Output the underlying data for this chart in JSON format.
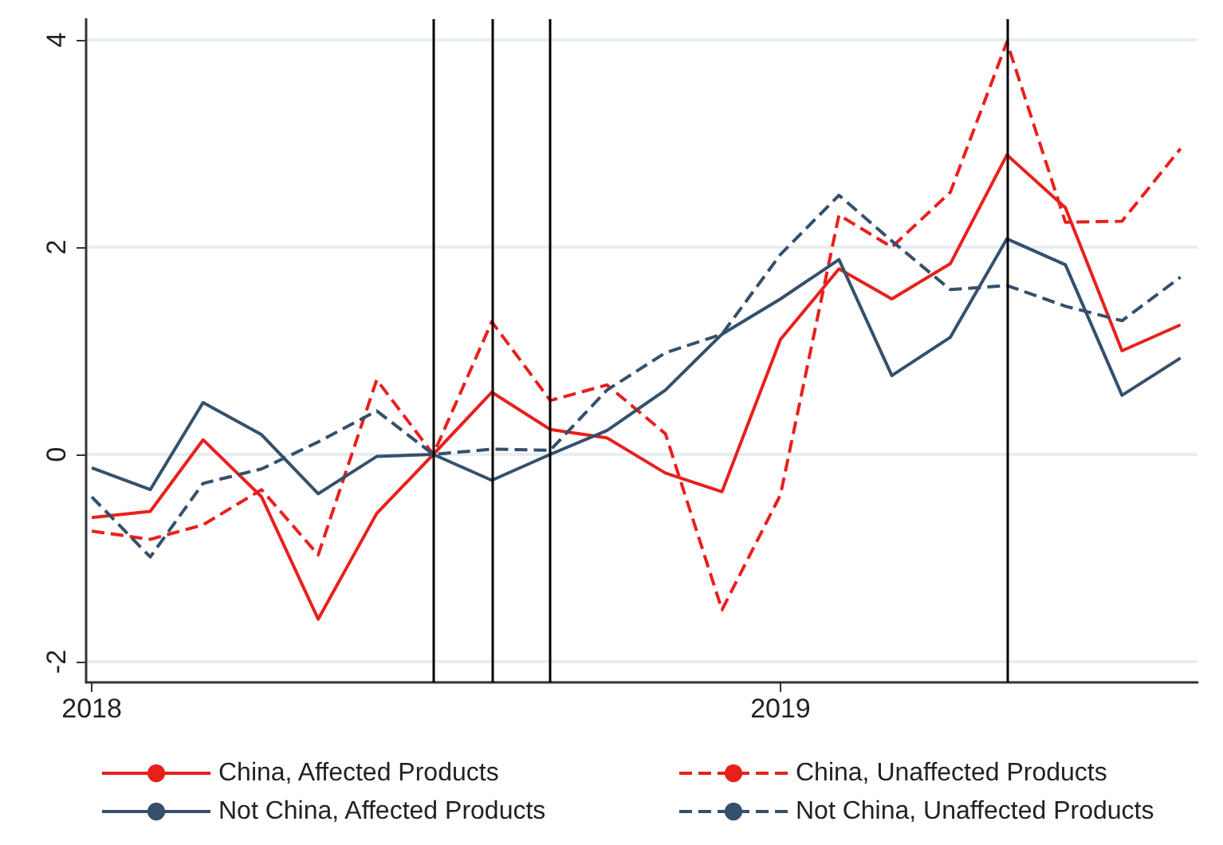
{
  "chart_data": {
    "type": "line",
    "x": [
      "2018-01",
      "2018-02",
      "2018-03",
      "2018-04",
      "2018-05",
      "2018-06",
      "2018-07",
      "2018-08",
      "2018-09",
      "2018-10",
      "2018-11",
      "2018-12",
      "2019-01",
      "2019-02",
      "2019-03",
      "2019-04",
      "2019-05",
      "2019-06",
      "2019-07",
      "2019-08"
    ],
    "series": [
      {
        "name": "China, Affected Products",
        "color": "#e8201c",
        "line_style": "solid",
        "values": [
          -0.61,
          -0.55,
          0.14,
          -0.41,
          -1.59,
          -0.57,
          0,
          0.6,
          0.24,
          0.16,
          -0.18,
          -0.36,
          1.11,
          1.79,
          1.5,
          1.84,
          2.89,
          2.38,
          1.0,
          1.25
        ]
      },
      {
        "name": "China, Unaffected Products",
        "color": "#e8201c",
        "line_style": "dashed",
        "values": [
          -0.74,
          -0.82,
          -0.68,
          -0.34,
          -0.97,
          0.72,
          0,
          1.28,
          0.52,
          0.67,
          0.2,
          -1.5,
          -0.39,
          2.31,
          2.0,
          2.53,
          3.98,
          2.24,
          2.25,
          2.95
        ]
      },
      {
        "name": "Not China, Affected Products",
        "color": "#35506b",
        "line_style": "solid",
        "values": [
          -0.13,
          -0.34,
          0.5,
          0.19,
          -0.38,
          -0.02,
          0,
          -0.25,
          0,
          0.23,
          0.62,
          1.16,
          1.5,
          1.88,
          0.76,
          1.13,
          2.08,
          1.83,
          0.57,
          0.93
        ]
      },
      {
        "name": "Not China, Unaffected Products",
        "color": "#35506b",
        "line_style": "dashed",
        "values": [
          -0.41,
          -0.99,
          -0.28,
          -0.14,
          0.12,
          0.42,
          0,
          0.05,
          0.04,
          0.62,
          0.98,
          1.16,
          1.93,
          2.5,
          2.06,
          1.59,
          1.63,
          1.43,
          1.29,
          1.71
        ]
      }
    ],
    "xlim": [
      "2017-12-29",
      "2019-08-10"
    ],
    "xticks": [
      {
        "value": "2018-01",
        "label": "2018"
      },
      {
        "value": "2019-01",
        "label": "2019"
      }
    ],
    "ylim": [
      -2.2,
      4.2
    ],
    "yticks": [
      -2,
      0,
      2,
      4
    ],
    "grid": "y",
    "legend": "bottom",
    "marker": "none",
    "ref_lines": [
      {
        "axis": "x",
        "value": "2018-07",
        "color": "#000000"
      },
      {
        "axis": "x",
        "value": "2018-08",
        "color": "#000000"
      },
      {
        "axis": "x",
        "value": "2018-09",
        "color": "#000000"
      },
      {
        "axis": "x",
        "value": "2019-05",
        "color": "#000000"
      }
    ]
  }
}
